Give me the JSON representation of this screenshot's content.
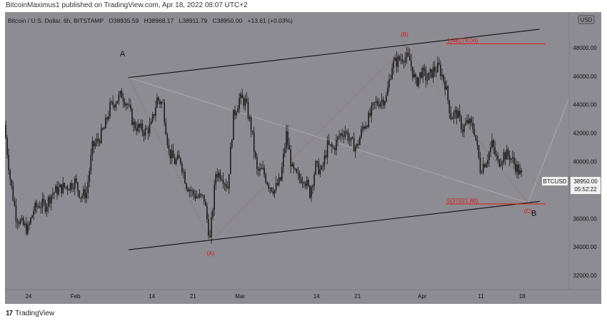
{
  "header": {
    "text": "BitcoinMaximus1 published on TradingView.com, Apr 18, 2022 08:07 UTC+2"
  },
  "legend": {
    "symbol": "Bitcoin / U.S. Dollar, 6h, BITSTAMP",
    "o_label": "O",
    "o_value": "38935.59",
    "h_label": "H",
    "h_value": "38968.17",
    "l_label": "L",
    "l_value": "38911.79",
    "c_label": "C",
    "c_value": "38950.00",
    "change": "+13.61 (+0.03%)"
  },
  "currency_badge": "USD",
  "price_tag": {
    "symbol": "BTCUSD",
    "price": "38950.00",
    "countdown": "05:52:22"
  },
  "footer": {
    "logo_glyph": "17",
    "brand": "TradingView"
  },
  "colors": {
    "background": "#8c8c92",
    "candle": "#1a1a1a",
    "fib_line": "#e01818",
    "channel_line": "#111111",
    "wave_line": "#9a6a6a",
    "projection_line": "#b0b0b0",
    "wave_label_red": "#d71a1a"
  },
  "chart_data": {
    "type": "candlestick",
    "title": "Bitcoin / U.S. Dollar, 6h, BITSTAMP",
    "ylim": [
      31000,
      50500
    ],
    "y_ticks": [
      {
        "value": 32000,
        "label": "32000.00"
      },
      {
        "value": 34000,
        "label": "34000.00"
      },
      {
        "value": 36000,
        "label": "36000.00"
      },
      {
        "value": 38000,
        "label": "38000.00"
      },
      {
        "value": 40000,
        "label": "40000.00"
      },
      {
        "value": 42000,
        "label": "42000.00"
      },
      {
        "value": 44000,
        "label": "44000.00"
      },
      {
        "value": 46000,
        "label": "46000.00"
      },
      {
        "value": 48000,
        "label": "48000.00"
      }
    ],
    "x_ticks": [
      {
        "date": "2022-01-24",
        "label": "24"
      },
      {
        "date": "2022-02-01",
        "label": "Feb"
      },
      {
        "date": "2022-02-14",
        "label": "14"
      },
      {
        "date": "2022-02-21",
        "label": "21"
      },
      {
        "date": "2022-03-01",
        "label": "Mar"
      },
      {
        "date": "2022-03-14",
        "label": "14"
      },
      {
        "date": "2022-03-21",
        "label": "21"
      },
      {
        "date": "2022-04-01",
        "label": "Apr"
      },
      {
        "date": "2022-04-11",
        "label": "11"
      },
      {
        "date": "2022-04-18",
        "label": "18"
      }
    ],
    "x_range": [
      "2022-01-20",
      "2022-04-26"
    ],
    "close_path": [
      {
        "date": "2022-01-20",
        "price": 42600
      },
      {
        "date": "2022-01-21",
        "price": 38800
      },
      {
        "date": "2022-01-22",
        "price": 36200
      },
      {
        "date": "2022-01-23",
        "price": 35600
      },
      {
        "date": "2022-01-24",
        "price": 35200
      },
      {
        "date": "2022-01-25",
        "price": 36600
      },
      {
        "date": "2022-01-26",
        "price": 37000
      },
      {
        "date": "2022-01-27",
        "price": 36900
      },
      {
        "date": "2022-01-28",
        "price": 37700
      },
      {
        "date": "2022-01-29",
        "price": 38000
      },
      {
        "date": "2022-01-30",
        "price": 38200
      },
      {
        "date": "2022-01-31",
        "price": 38300
      },
      {
        "date": "2022-02-01",
        "price": 38600
      },
      {
        "date": "2022-02-02",
        "price": 37600
      },
      {
        "date": "2022-02-03",
        "price": 37800
      },
      {
        "date": "2022-02-04",
        "price": 41000
      },
      {
        "date": "2022-02-05",
        "price": 41500
      },
      {
        "date": "2022-02-06",
        "price": 42300
      },
      {
        "date": "2022-02-07",
        "price": 43800
      },
      {
        "date": "2022-02-08",
        "price": 44300
      },
      {
        "date": "2022-02-09",
        "price": 44700
      },
      {
        "date": "2022-02-10",
        "price": 44000
      },
      {
        "date": "2022-02-11",
        "price": 42600
      },
      {
        "date": "2022-02-12",
        "price": 42300
      },
      {
        "date": "2022-02-13",
        "price": 42100
      },
      {
        "date": "2022-02-14",
        "price": 42500
      },
      {
        "date": "2022-02-15",
        "price": 44400
      },
      {
        "date": "2022-02-16",
        "price": 44000
      },
      {
        "date": "2022-02-17",
        "price": 40700
      },
      {
        "date": "2022-02-18",
        "price": 40000
      },
      {
        "date": "2022-02-19",
        "price": 40100
      },
      {
        "date": "2022-02-20",
        "price": 38400
      },
      {
        "date": "2022-02-21",
        "price": 37800
      },
      {
        "date": "2022-02-22",
        "price": 37500
      },
      {
        "date": "2022-02-23",
        "price": 37400
      },
      {
        "date": "2022-02-24",
        "price": 34500
      },
      {
        "date": "2022-02-25",
        "price": 39200
      },
      {
        "date": "2022-02-26",
        "price": 39100
      },
      {
        "date": "2022-02-27",
        "price": 38200
      },
      {
        "date": "2022-02-28",
        "price": 43200
      },
      {
        "date": "2022-03-01",
        "price": 44400
      },
      {
        "date": "2022-03-02",
        "price": 44200
      },
      {
        "date": "2022-03-03",
        "price": 42400
      },
      {
        "date": "2022-03-04",
        "price": 39300
      },
      {
        "date": "2022-03-05",
        "price": 39300
      },
      {
        "date": "2022-03-06",
        "price": 38400
      },
      {
        "date": "2022-03-07",
        "price": 38000
      },
      {
        "date": "2022-03-08",
        "price": 38700
      },
      {
        "date": "2022-03-09",
        "price": 41900
      },
      {
        "date": "2022-03-10",
        "price": 39400
      },
      {
        "date": "2022-03-11",
        "price": 38800
      },
      {
        "date": "2022-03-12",
        "price": 38900
      },
      {
        "date": "2022-03-13",
        "price": 37800
      },
      {
        "date": "2022-03-14",
        "price": 39700
      },
      {
        "date": "2022-03-15",
        "price": 39300
      },
      {
        "date": "2022-03-16",
        "price": 41100
      },
      {
        "date": "2022-03-17",
        "price": 40900
      },
      {
        "date": "2022-03-18",
        "price": 41800
      },
      {
        "date": "2022-03-19",
        "price": 42200
      },
      {
        "date": "2022-03-20",
        "price": 41300
      },
      {
        "date": "2022-03-21",
        "price": 41000
      },
      {
        "date": "2022-03-22",
        "price": 42400
      },
      {
        "date": "2022-03-23",
        "price": 43000
      },
      {
        "date": "2022-03-24",
        "price": 44000
      },
      {
        "date": "2022-03-25",
        "price": 44300
      },
      {
        "date": "2022-03-26",
        "price": 44500
      },
      {
        "date": "2022-03-27",
        "price": 46800
      },
      {
        "date": "2022-03-28",
        "price": 47100
      },
      {
        "date": "2022-03-29",
        "price": 47400
      },
      {
        "date": "2022-03-30",
        "price": 47100
      },
      {
        "date": "2022-03-31",
        "price": 45500
      },
      {
        "date": "2022-04-01",
        "price": 46300
      },
      {
        "date": "2022-04-02",
        "price": 45800
      },
      {
        "date": "2022-04-03",
        "price": 46400
      },
      {
        "date": "2022-04-04",
        "price": 46600
      },
      {
        "date": "2022-04-05",
        "price": 45500
      },
      {
        "date": "2022-04-06",
        "price": 43200
      },
      {
        "date": "2022-04-07",
        "price": 43400
      },
      {
        "date": "2022-04-08",
        "price": 42300
      },
      {
        "date": "2022-04-09",
        "price": 42800
      },
      {
        "date": "2022-04-10",
        "price": 42200
      },
      {
        "date": "2022-04-11",
        "price": 39500
      },
      {
        "date": "2022-04-12",
        "price": 40100
      },
      {
        "date": "2022-04-13",
        "price": 41200
      },
      {
        "date": "2022-04-14",
        "price": 39900
      },
      {
        "date": "2022-04-15",
        "price": 40500
      },
      {
        "date": "2022-04-16",
        "price": 40400
      },
      {
        "date": "2022-04-17",
        "price": 39700
      },
      {
        "date": "2022-04-18",
        "price": 38950
      }
    ],
    "channel_upper": [
      {
        "date": "2022-02-10",
        "price": 45900
      },
      {
        "date": "2022-04-21",
        "price": 49300
      }
    ],
    "channel_lower": [
      {
        "date": "2022-02-10",
        "price": 33800
      },
      {
        "date": "2022-04-21",
        "price": 37200
      }
    ],
    "wave_path": [
      {
        "date": "2022-02-10",
        "price": 45900
      },
      {
        "date": "2022-02-24",
        "price": 34400
      },
      {
        "date": "2022-03-29",
        "price": 48100
      },
      {
        "date": "2022-04-19",
        "price": 37100
      }
    ],
    "projection_path": [
      {
        "date": "2022-02-10",
        "price": 45900
      },
      {
        "date": "2022-04-19",
        "price": 37100
      },
      {
        "date": "2022-04-26",
        "price": 44500
      }
    ],
    "fib_levels": [
      {
        "value": 48278.04,
        "label": "1(48278.04)",
        "from": "2022-04-05",
        "to": "2022-04-22"
      },
      {
        "value": 37021.88,
        "label": "0(37021.88)",
        "from": "2022-04-05",
        "to": "2022-04-22"
      }
    ],
    "wave_labels": [
      {
        "text": "A",
        "date": "2022-02-09",
        "price": 47400,
        "color": "black"
      },
      {
        "text": "(A)",
        "date": "2022-02-24",
        "price": 33400,
        "color": "red"
      },
      {
        "text": "(B)",
        "date": "2022-03-29",
        "price": 48800,
        "color": "red"
      },
      {
        "text": "(C)",
        "date": "2022-04-19",
        "price": 36400,
        "color": "red"
      },
      {
        "text": "B",
        "date": "2022-04-20",
        "price": 36200,
        "color": "black"
      }
    ]
  }
}
